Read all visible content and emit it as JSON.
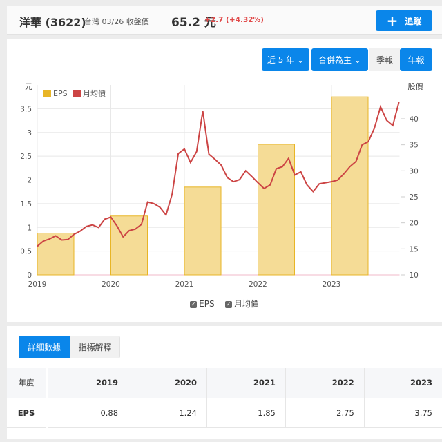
{
  "header": {
    "stock_name": "洋華 (3622)",
    "market_date": "台灣 03/26 收盤價",
    "price": "65.2 元",
    "change": "+2.7 (+4.32%)",
    "track_label": "追蹤",
    "track_icon": "plus-icon"
  },
  "controls": {
    "range": "近 5 年",
    "consolidation": "合併為主",
    "quarterly": "季報",
    "annual": "年報"
  },
  "legend_toggles": {
    "eps": "EPS",
    "price": "月均價"
  },
  "tabs": {
    "detail": "詳細數據",
    "explain": "指標解釋"
  },
  "table": {
    "header": [
      "年度",
      "2019",
      "2020",
      "2021",
      "2022",
      "2023"
    ],
    "rows": [
      [
        "EPS",
        "0.88",
        "1.24",
        "1.85",
        "2.75",
        "3.75"
      ]
    ]
  },
  "chart_data": {
    "type": "bar+line",
    "left_axis_label": "元",
    "right_axis_label": "股價",
    "left_ticks": [
      "0",
      "0.5",
      "1",
      "1.5",
      "2",
      "2.5",
      "3",
      "3.5"
    ],
    "right_ticks": [
      "10",
      "15",
      "20",
      "25",
      "30",
      "35",
      "40"
    ],
    "x_ticks": [
      "2019",
      "2020",
      "2021",
      "2022",
      "2023"
    ],
    "left_range": [
      0,
      4
    ],
    "right_range": [
      10,
      46.5
    ],
    "legend": [
      "EPS",
      "月均價"
    ],
    "colors": {
      "eps": "#e8b526",
      "price": "#cc4444"
    },
    "eps": {
      "categories": [
        "2019",
        "2020",
        "2021",
        "2022",
        "2023"
      ],
      "values": [
        0.88,
        1.24,
        1.85,
        2.75,
        3.75
      ]
    },
    "monthly_price": [
      15.5,
      16.5,
      16.9,
      17.5,
      16.7,
      16.8,
      17.8,
      18.4,
      19.3,
      19.6,
      19.1,
      20.7,
      21.1,
      19.4,
      17.3,
      18.5,
      18.8,
      19.7,
      24.0,
      23.7,
      23.0,
      21.5,
      25.5,
      33.3,
      34.2,
      31.6,
      33.7,
      41.5,
      33.2,
      32.2,
      31.1,
      28.7,
      27.9,
      28.3,
      30.0,
      28.9,
      27.7,
      26.6,
      27.3,
      30.4,
      30.8,
      32.4,
      29.2,
      29.8,
      27.3,
      26.0,
      27.5,
      27.7,
      27.9,
      28.2,
      29.4,
      30.8,
      31.8,
      35.0,
      35.6,
      38.2,
      42.3,
      39.7,
      38.7,
      43.2
    ]
  }
}
